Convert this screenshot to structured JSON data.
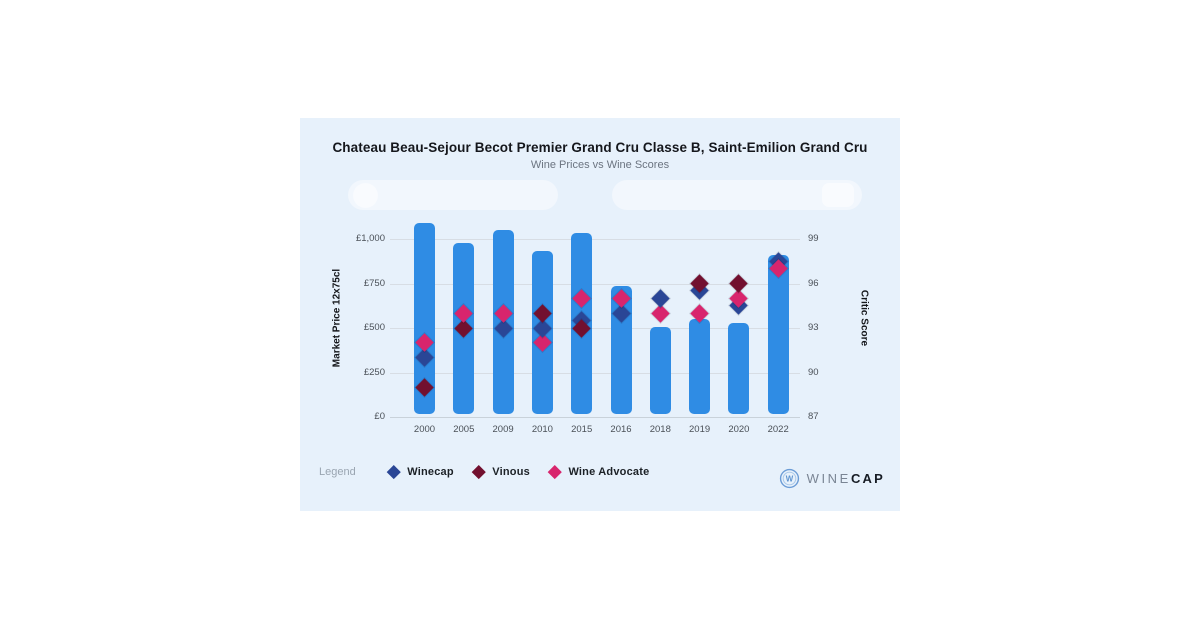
{
  "header": {
    "title": "Chateau Beau-Sejour Becot Premier Grand Cru Classe B, Saint-Emilion Grand Cru",
    "subtitle": "Wine Prices vs Wine Scores"
  },
  "legend": {
    "label": "Legend",
    "items": [
      {
        "name": "Winecap",
        "color": "#2a4696"
      },
      {
        "name": "Vinous",
        "color": "#72102f"
      },
      {
        "name": "Wine Advocate",
        "color": "#d8256d"
      }
    ]
  },
  "logo": {
    "icon": "winecap-monogram-icon",
    "text_light": "WINE",
    "text_bold": "CAP"
  },
  "colors": {
    "card_background": "#e7f1fb",
    "bar": "#2f8ce4",
    "grid": "#d7dde4",
    "axis_line": "#c9d2da"
  },
  "chart_data": {
    "type": "bar+scatter",
    "title": "Chateau Beau-Sejour Becot Premier Grand Cru Classe B, Saint-Emilion Grand Cru",
    "subtitle": "Wine Prices vs Wine Scores",
    "categories": [
      "2000",
      "2005",
      "2009",
      "2010",
      "2015",
      "2016",
      "2018",
      "2019",
      "2020",
      "2022"
    ],
    "bar_series": {
      "name": "Market Price",
      "unit": "GBP per 12x75cl",
      "axis": "left",
      "color": "#2f8ce4",
      "values": [
        1090,
        980,
        1050,
        930,
        1035,
        735,
        505,
        550,
        530,
        910
      ]
    },
    "scatter_series": [
      {
        "name": "Winecap",
        "key": "winecap",
        "axis": "right",
        "color": "#2a4696",
        "values": [
          91,
          null,
          93,
          93,
          93.5,
          94,
          95,
          95.5,
          94.5,
          97.5
        ]
      },
      {
        "name": "Vinous",
        "key": "vinous",
        "axis": "right",
        "color": "#72102f",
        "values": [
          89,
          93,
          null,
          94,
          93,
          null,
          null,
          96,
          96,
          null
        ]
      },
      {
        "name": "Wine Advocate",
        "key": "wine_advocate",
        "axis": "right",
        "color": "#d8256d",
        "values": [
          92,
          94,
          94,
          92,
          95,
          95,
          94,
          94,
          95,
          97
        ]
      }
    ],
    "left_axis": {
      "label": "Market Price 12x75cl",
      "tick_labels": [
        "£1,000",
        "£750",
        "£500",
        "£250",
        "£0"
      ],
      "tick_values": [
        1000,
        750,
        500,
        250,
        0
      ],
      "range": [
        0,
        1250
      ]
    },
    "right_axis": {
      "label": "Critic Score",
      "tick_labels": [
        "99",
        "96",
        "93",
        "90",
        "87"
      ],
      "tick_values": [
        99,
        96,
        93,
        90,
        87
      ],
      "range": [
        87,
        102
      ]
    },
    "grid": "horizontal-only",
    "legend_position": "bottom-left"
  }
}
